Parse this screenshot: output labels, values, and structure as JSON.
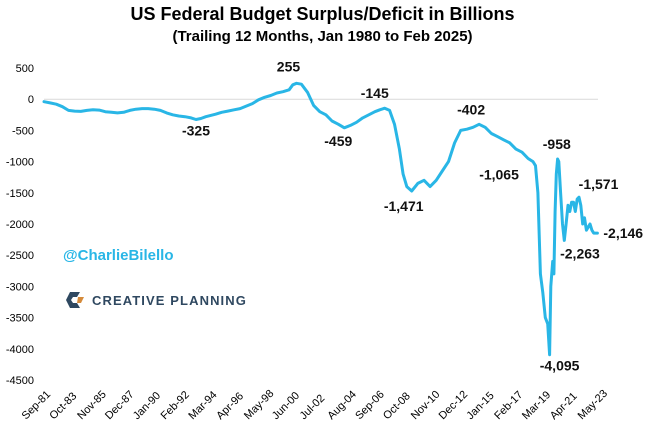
{
  "chart_data": {
    "type": "line",
    "title": "US Federal Budget Surplus/Deficit in Billions",
    "subtitle": "(Trailing 12 Months, Jan 1980 to Feb 2025)",
    "ylim": [
      -4500,
      500
    ],
    "yticks": [
      500,
      0,
      -500,
      -1000,
      -1500,
      -2000,
      -2500,
      -3000,
      -3500,
      -4000,
      -4500
    ],
    "x_tick_labels": [
      "Sep-81",
      "Oct-83",
      "Nov-85",
      "Dec-87",
      "Jan-90",
      "Feb-92",
      "Mar-94",
      "Apr-96",
      "May-98",
      "Jun-00",
      "Jul-02",
      "Aug-04",
      "Sep-06",
      "Oct-08",
      "Nov-10",
      "Dec-12",
      "Jan-15",
      "Feb-17",
      "Mar-19",
      "Apr-21",
      "May-23"
    ],
    "grid": false,
    "line_color": "#29b6e6",
    "series": [
      {
        "x": [
          1980.0,
          1980.5,
          1981.0,
          1981.5,
          1982.0,
          1982.5,
          1983.0,
          1983.5,
          1984.0,
          1984.5,
          1985.0,
          1985.5,
          1986.0,
          1986.5,
          1987.0,
          1987.5,
          1988.0,
          1988.5,
          1989.0,
          1989.5,
          1990.0,
          1990.5,
          1991.0,
          1991.5,
          1992.0,
          1992.4,
          1992.8,
          1993.2,
          1993.6,
          1994.0,
          1994.5,
          1995.0,
          1995.5,
          1996.0,
          1996.5,
          1997.0,
          1997.5,
          1998.0,
          1998.5,
          1999.0,
          1999.5,
          2000.0,
          2000.3,
          2000.6,
          2001.0,
          2001.5,
          2002.0,
          2002.5,
          2003.0,
          2003.5,
          2004.0,
          2004.5,
          2005.0,
          2005.5,
          2006.0,
          2006.5,
          2007.0,
          2007.4,
          2007.8,
          2008.2,
          2008.6,
          2009.0,
          2009.3,
          2009.6,
          2010.0,
          2010.5,
          2011.0,
          2011.5,
          2012.0,
          2012.5,
          2013.0,
          2013.5,
          2014.0,
          2014.5,
          2015.0,
          2015.5,
          2016.0,
          2016.5,
          2017.0,
          2017.5,
          2018.0,
          2018.5,
          2019.0,
          2019.5,
          2019.9,
          2020.1,
          2020.3,
          2020.5,
          2020.7,
          2020.9,
          2021.1,
          2021.25,
          2021.35,
          2021.5,
          2021.6,
          2021.7,
          2021.8,
          2021.9,
          2022.0,
          2022.15,
          2022.3,
          2022.45,
          2022.6,
          2022.75,
          2022.9,
          2023.05,
          2023.2,
          2023.35,
          2023.5,
          2023.65,
          2023.8,
          2023.95,
          2024.1,
          2024.25,
          2024.4,
          2024.55,
          2024.7,
          2024.85,
          2025.0,
          2025.15
        ],
        "y": [
          -40,
          -60,
          -80,
          -120,
          -180,
          -190,
          -195,
          -180,
          -170,
          -175,
          -200,
          -210,
          -220,
          -210,
          -180,
          -160,
          -150,
          -150,
          -160,
          -180,
          -220,
          -250,
          -270,
          -280,
          -300,
          -325,
          -310,
          -280,
          -260,
          -240,
          -210,
          -190,
          -170,
          -150,
          -110,
          -70,
          -10,
          30,
          60,
          100,
          120,
          150,
          230,
          255,
          240,
          110,
          -100,
          -200,
          -250,
          -350,
          -400,
          -459,
          -420,
          -370,
          -300,
          -250,
          -200,
          -170,
          -145,
          -180,
          -400,
          -800,
          -1200,
          -1400,
          -1471,
          -1350,
          -1300,
          -1400,
          -1300,
          -1150,
          -1000,
          -700,
          -500,
          -480,
          -450,
          -402,
          -450,
          -550,
          -600,
          -650,
          -700,
          -800,
          -850,
          -950,
          -1000,
          -1065,
          -1500,
          -2800,
          -3100,
          -3500,
          -3600,
          -4095,
          -3000,
          -2600,
          -2800,
          -1800,
          -1200,
          -958,
          -1000,
          -1500,
          -2000,
          -2263,
          -2000,
          -1700,
          -1800,
          -1650,
          -1650,
          -1800,
          -1600,
          -1571,
          -1700,
          -2000,
          -1900,
          -2100,
          -2050,
          -2000,
          -2100,
          -2146,
          -2146,
          -2146
        ]
      }
    ],
    "annotations": [
      {
        "x": 1992.4,
        "y": -325,
        "text": "-325"
      },
      {
        "x": 2000.6,
        "y": 255,
        "text": "255"
      },
      {
        "x": 2004.5,
        "y": -459,
        "text": "-459"
      },
      {
        "x": 2007.8,
        "y": -145,
        "text": "-145"
      },
      {
        "x": 2010.0,
        "y": -1471,
        "text": "-1,471"
      },
      {
        "x": 2015.5,
        "y": -402,
        "text": "-402"
      },
      {
        "x": 2019.9,
        "y": -1065,
        "text": "-1,065"
      },
      {
        "x": 2021.25,
        "y": -4095,
        "text": "-4,095"
      },
      {
        "x": 2022.0,
        "y": -958,
        "text": "-958"
      },
      {
        "x": 2022.75,
        "y": -2263,
        "text": "-2,263"
      },
      {
        "x": 2024.1,
        "y": -1571,
        "text": "-1,571"
      },
      {
        "x": 2025.15,
        "y": -2146,
        "text": "-2,146"
      }
    ]
  },
  "watermark": {
    "handle": "@CharlieBilello",
    "logo_text": "CREATIVE PLANNING",
    "logo_icon": "creative-planning-mark-icon"
  }
}
